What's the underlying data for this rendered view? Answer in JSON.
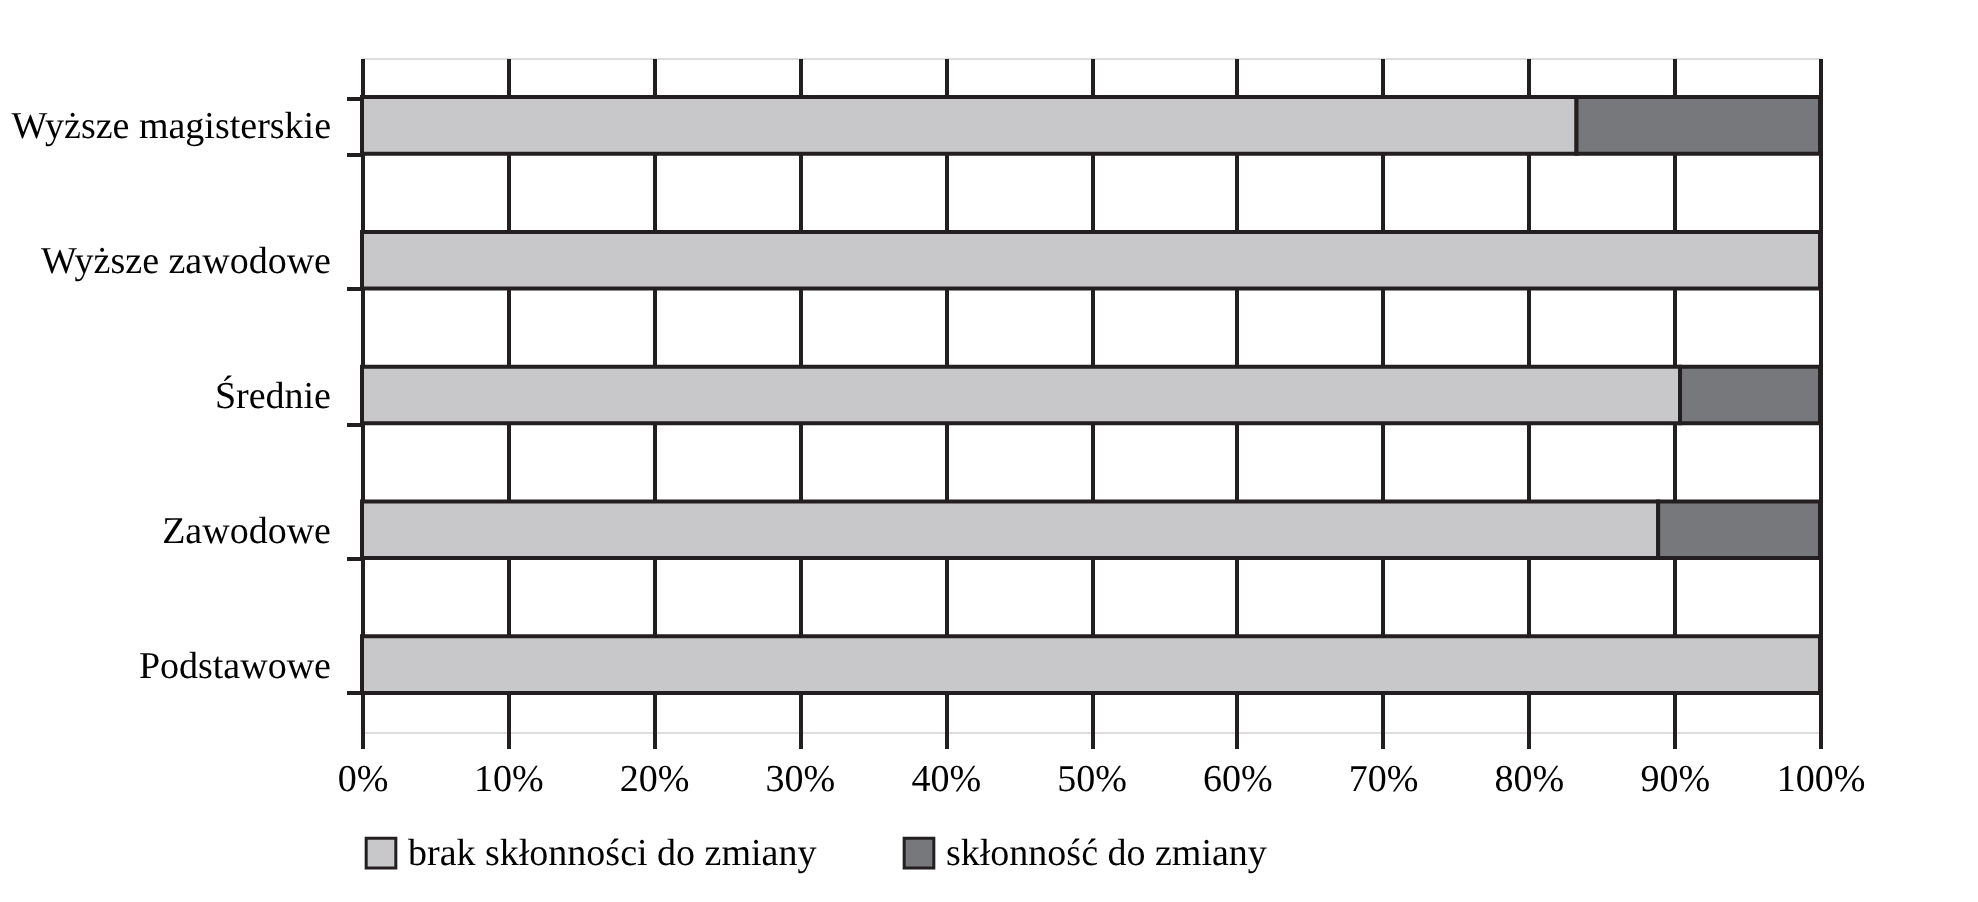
{
  "chart_data": {
    "type": "bar",
    "orientation": "horizontal",
    "stacked": true,
    "categories": [
      "Wyższe magisterskie",
      "Wyższe zawodowe",
      "Średnie",
      "Zawodowe",
      "Podstawowe"
    ],
    "series": [
      {
        "name": "brak skłonności do zmiany",
        "color": "#c8c8ca",
        "values": [
          83.3,
          100,
          90.4,
          88.9,
          100
        ]
      },
      {
        "name": "skłonność do zmiany",
        "color": "#77787b",
        "values": [
          16.7,
          0,
          9.6,
          11.1,
          0
        ]
      }
    ],
    "xlim": [
      0,
      100
    ],
    "xticks": [
      {
        "value": 0,
        "label": "0%"
      },
      {
        "value": 10,
        "label": "10%"
      },
      {
        "value": 20,
        "label": "20%"
      },
      {
        "value": 30,
        "label": "30%"
      },
      {
        "value": 40,
        "label": "40%"
      },
      {
        "value": 50,
        "label": "50%"
      },
      {
        "value": 60,
        "label": "60%"
      },
      {
        "value": 70,
        "label": "70%"
      },
      {
        "value": 80,
        "label": "80%"
      },
      {
        "value": 90,
        "label": "90%"
      },
      {
        "value": 100,
        "label": "100%"
      }
    ],
    "grid": "x",
    "legend": "bottom"
  }
}
